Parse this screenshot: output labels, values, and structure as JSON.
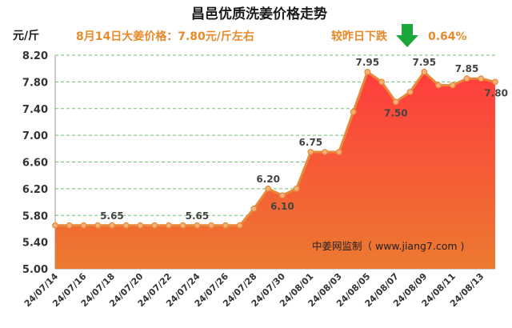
{
  "chart_data": {
    "type": "area",
    "title": "昌邑优质洗姜价格走势",
    "ylabel": "元/斤",
    "xlabel": "",
    "ylim": [
      5.0,
      8.2
    ],
    "yticks": [
      "5.00",
      "5.40",
      "5.80",
      "6.20",
      "6.60",
      "7.00",
      "7.40",
      "7.80",
      "8.20"
    ],
    "grid": "horizontal-dashed",
    "x": [
      "24/07/14",
      "24/07/15",
      "24/07/16",
      "24/07/17",
      "24/07/18",
      "24/07/19",
      "24/07/20",
      "24/07/21",
      "24/07/22",
      "24/07/23",
      "24/07/24",
      "24/07/25",
      "24/07/26",
      "24/07/27",
      "24/07/28",
      "24/07/29",
      "24/07/30",
      "24/07/31",
      "24/08/01",
      "24/08/02",
      "24/08/03",
      "24/08/04",
      "24/08/05",
      "24/08/06",
      "24/08/07",
      "24/08/08",
      "24/08/09",
      "24/08/10",
      "24/08/11",
      "24/08/12",
      "24/08/13",
      "24/08/14"
    ],
    "values": [
      5.65,
      5.65,
      5.65,
      5.65,
      5.65,
      5.65,
      5.65,
      5.65,
      5.65,
      5.65,
      5.65,
      5.65,
      5.65,
      5.65,
      5.9,
      6.2,
      6.1,
      6.2,
      6.75,
      6.75,
      6.75,
      7.35,
      7.95,
      7.8,
      7.5,
      7.65,
      7.95,
      7.75,
      7.75,
      7.85,
      7.85,
      7.8
    ],
    "xtick_labels": [
      "24/07/14",
      "24/07/16",
      "24/07/18",
      "24/07/20",
      "24/07/22",
      "24/07/24",
      "24/07/26",
      "24/07/28",
      "24/07/30",
      "24/08/01",
      "24/08/03",
      "24/08/05",
      "24/08/07",
      "24/08/09",
      "24/08/11",
      "24/08/13"
    ],
    "data_labels": [
      {
        "x": "24/07/18",
        "text": "5.65",
        "pos": "above"
      },
      {
        "x": "24/07/24",
        "text": "5.65",
        "pos": "above"
      },
      {
        "x": "24/07/29",
        "text": "6.20",
        "pos": "above"
      },
      {
        "x": "24/07/30",
        "text": "6.10",
        "pos": "below"
      },
      {
        "x": "24/08/01",
        "text": "6.75",
        "pos": "above"
      },
      {
        "x": "24/08/05",
        "text": "7.95",
        "pos": "above"
      },
      {
        "x": "24/08/07",
        "text": "7.50",
        "pos": "below"
      },
      {
        "x": "24/08/09",
        "text": "7.95",
        "pos": "above"
      },
      {
        "x": "24/08/12",
        "text": "7.85",
        "pos": "above"
      },
      {
        "x": "24/08/14",
        "text": "7.80",
        "pos": "below"
      }
    ],
    "annotations": {
      "price_today": "8月14日大姜价格：7.80元/斤左右",
      "change_label": "较昨日下跌",
      "change_value": "0.64%",
      "source": "中姜网监制（ www.jiang7.com )"
    },
    "colors": {
      "line": "#e8893a",
      "marker_fill": "#f2b27a",
      "area_top": "#ff3d3d",
      "area_bottom": "#ec7a30",
      "grid": "#6fbf6f",
      "arrow": "#1aa83a",
      "annotation": "#e88a2a"
    }
  }
}
